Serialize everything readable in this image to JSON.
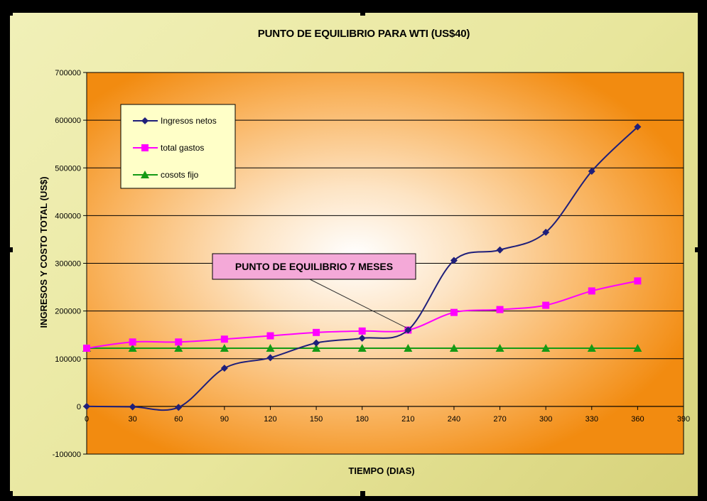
{
  "chart_data": {
    "type": "line",
    "title": "PUNTO DE EQUILIBRIO PARA WTI (US$40)",
    "xlabel": "TIEMPO (DIAS)",
    "ylabel": "INGRESOS Y COSTO TOTAL (US$)",
    "x": [
      0,
      30,
      60,
      90,
      120,
      150,
      180,
      210,
      240,
      270,
      300,
      330,
      360
    ],
    "xlim": [
      0,
      390
    ],
    "xticks": [
      0,
      30,
      60,
      90,
      120,
      150,
      180,
      210,
      240,
      270,
      300,
      330,
      360,
      390
    ],
    "xtick_labels": [
      "0",
      "30",
      "60",
      "90",
      "120",
      "150",
      "180",
      "210",
      "240",
      "270",
      "300",
      "330",
      "360",
      "390"
    ],
    "ylim": [
      -100000,
      700000
    ],
    "yticks": [
      -100000,
      0,
      100000,
      200000,
      300000,
      400000,
      500000,
      600000,
      700000
    ],
    "ytick_labels": [
      "-100000",
      "0",
      "100000",
      "200000",
      "300000",
      "400000",
      "500000",
      "600000",
      "700000"
    ],
    "grid": "horizontal",
    "legend_position": "top-left",
    "series": [
      {
        "name": "Ingresos netos",
        "color": "#1f1f7a",
        "marker": "diamond",
        "values": [
          0,
          -1000,
          -2000,
          80000,
          102000,
          133000,
          143000,
          160000,
          306000,
          328000,
          365000,
          493000,
          586000
        ]
      },
      {
        "name": "total gastos",
        "color": "#ff00ff",
        "marker": "square",
        "values": [
          122000,
          135000,
          135000,
          141000,
          148000,
          155000,
          158000,
          160000,
          197000,
          203000,
          212000,
          242000,
          263000
        ]
      },
      {
        "name": "cosots fijo",
        "color": "#159a15",
        "marker": "triangle",
        "values": [
          122000,
          122000,
          122000,
          122000,
          122000,
          122000,
          122000,
          122000,
          122000,
          122000,
          122000,
          122000,
          122000
        ]
      }
    ],
    "annotation": {
      "text": "PUNTO DE EQUILIBRIO 7 MESES",
      "x": 210,
      "y": 160000,
      "box_color": "#f4a9d8"
    }
  }
}
